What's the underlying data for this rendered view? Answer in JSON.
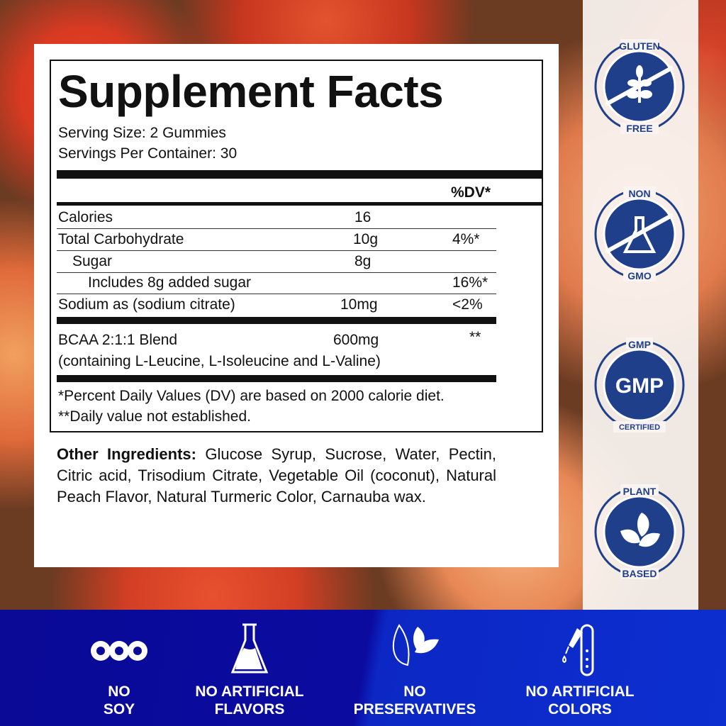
{
  "facts": {
    "title": "Supplement Facts",
    "serving_size": "Serving Size: 2 Gummies",
    "servings_per_container": "Servings Per Container: 30",
    "dv_header": "%DV*",
    "rows": [
      {
        "name": "Calories",
        "amount": "16",
        "dv": ""
      },
      {
        "name": "Total Carbohydrate",
        "amount": "10g",
        "dv": "4%*"
      },
      {
        "name": "Sugar",
        "amount": "8g",
        "dv": ""
      },
      {
        "name": "Includes 8g added sugar",
        "amount": "",
        "dv": "16%*"
      },
      {
        "name": "Sodium as (sodium citrate)",
        "amount": "10mg",
        "dv": "<2%"
      }
    ],
    "blend": {
      "name": "BCAA 2:1:1 Blend",
      "amount": "600mg",
      "dv": "**",
      "detail": "(containing L-Leucine, L-Isoleucine and L-Valine)"
    },
    "footnote1": "*Percent Daily Values (DV) are based on 2000 calorie diet.",
    "footnote2": "**Daily value not established."
  },
  "other_ingredients": {
    "label": "Other Ingredients:",
    "text": " Glucose Syrup, Sucrose, Water, Pectin, Citric acid, Trisodium Citrate, Vegetable Oil (coconut), Natural Peach Flavor, Natural Turmeric Color, Carnauba wax."
  },
  "badges": [
    {
      "top": "GLUTEN",
      "bottom": "FREE",
      "icon": "wheat-icon"
    },
    {
      "top": "NON",
      "bottom": "GMO",
      "icon": "flask-icon"
    },
    {
      "top": "GMP",
      "bottom": "CERTIFIED",
      "center": "GMP"
    },
    {
      "top": "PLANT",
      "bottom": "BASED",
      "icon": "leaves-icon"
    }
  ],
  "features": [
    {
      "line1": "NO",
      "line2": "SOY",
      "icon": "soybean-icon"
    },
    {
      "line1": "NO ARTIFICIAL",
      "line2": "FLAVORS",
      "icon": "flask-icon"
    },
    {
      "line1": "NO",
      "line2": "PRESERVATIVES",
      "icon": "leaf-icon"
    },
    {
      "line1": "NO ARTIFICIAL",
      "line2": "COLORS",
      "icon": "dropper-test-tube-icon"
    }
  ],
  "colors": {
    "badge_blue": "#1f3f8a",
    "banner_blue": "#0b0ba0"
  }
}
